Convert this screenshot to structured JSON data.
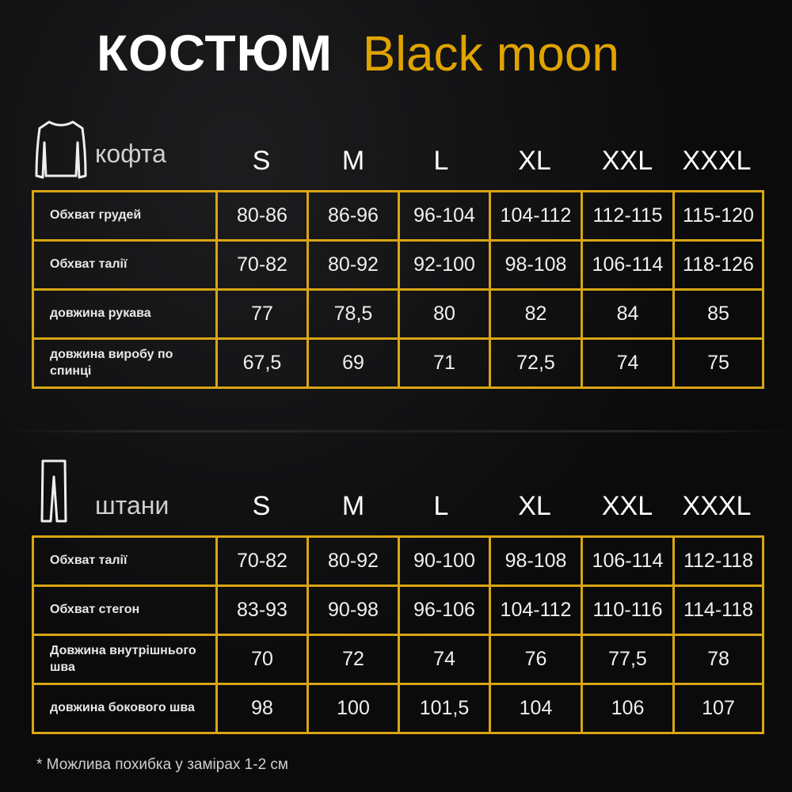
{
  "title": {
    "main": "КОСТЮМ",
    "brand": "Black moon",
    "brand_color": "#e0a400"
  },
  "accent_border": "#d8a514",
  "sizes": [
    "S",
    "M",
    "L",
    "XL",
    "XXL",
    "XXXL"
  ],
  "top": {
    "label": "кофта",
    "icon": "sweater-icon",
    "rows": [
      {
        "label": "Обхват грудей",
        "values": [
          "80-86",
          "86-96",
          "96-104",
          "104-112",
          "112-115",
          "115-120"
        ]
      },
      {
        "label": "Обхват талії",
        "values": [
          "70-82",
          "80-92",
          "92-100",
          "98-108",
          "106-114",
          "118-126"
        ]
      },
      {
        "label": "довжина рукава",
        "values": [
          "77",
          "78,5",
          "80",
          "82",
          "84",
          "85"
        ]
      },
      {
        "label": "довжина виробу по спинці",
        "values": [
          "67,5",
          "69",
          "71",
          "72,5",
          "74",
          "75"
        ]
      }
    ]
  },
  "bottom": {
    "label": "штани",
    "icon": "pants-icon",
    "rows": [
      {
        "label": "Обхват талії",
        "values": [
          "70-82",
          "80-92",
          "90-100",
          "98-108",
          "106-114",
          "112-118"
        ]
      },
      {
        "label": "Обхват стегон",
        "values": [
          "83-93",
          "90-98",
          "96-106",
          "104-112",
          "110-116",
          "114-118"
        ]
      },
      {
        "label": "Довжина внутрішнього шва",
        "values": [
          "70",
          "72",
          "74",
          "76",
          "77,5",
          "78"
        ]
      },
      {
        "label": "довжина бокового шва",
        "values": [
          "98",
          "100",
          "101,5",
          "104",
          "106",
          "107"
        ]
      }
    ]
  },
  "note": "* Можлива похибка у замірах 1-2 см"
}
